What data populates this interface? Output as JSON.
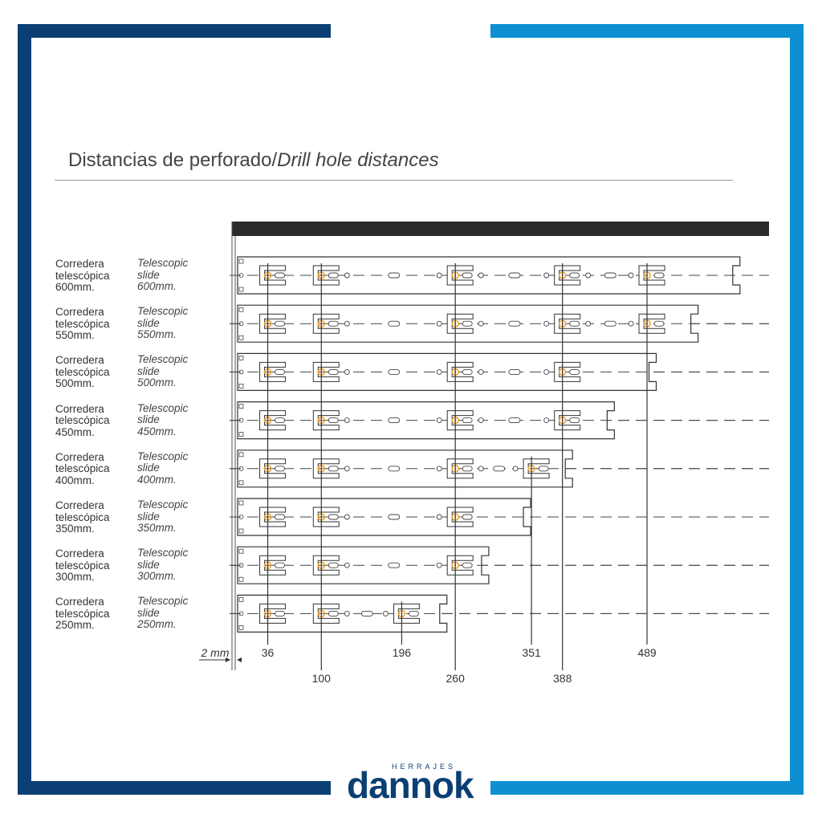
{
  "title": {
    "es": "Distancias de perforado",
    "sep": "/",
    "en": "Drill hole distances"
  },
  "rows": [
    {
      "es_line1": "Corredera",
      "es_line2": "telescópica",
      "size": "600mm.",
      "en_line1": "Telescopic",
      "en_line2": "slide",
      "size_en": "600mm.",
      "length_mm": 600,
      "brackets": [
        36,
        100,
        260,
        388,
        489
      ]
    },
    {
      "es_line1": "Corredera",
      "es_line2": "telescópica",
      "size": "550mm.",
      "en_line1": "Telescopic",
      "en_line2": "slide",
      "size_en": "550mm.",
      "length_mm": 550,
      "brackets": [
        36,
        100,
        260,
        388,
        489
      ]
    },
    {
      "es_line1": "Corredera",
      "es_line2": "telescópica",
      "size": "500mm.",
      "en_line1": "Telescopic",
      "en_line2": "slide",
      "size_en": "500mm.",
      "length_mm": 500,
      "brackets": [
        36,
        100,
        260,
        388
      ]
    },
    {
      "es_line1": "Corredera",
      "es_line2": "telescópica",
      "size": "450mm.",
      "en_line1": "Telescopic",
      "en_line2": "slide",
      "size_en": "450mm.",
      "length_mm": 450,
      "brackets": [
        36,
        100,
        260,
        388
      ]
    },
    {
      "es_line1": "Corredera",
      "es_line2": "telescópica",
      "size": "400mm.",
      "en_line1": "Telescopic",
      "en_line2": "slide",
      "size_en": "400mm.",
      "length_mm": 400,
      "brackets": [
        36,
        100,
        260,
        351
      ]
    },
    {
      "es_line1": "Corredera",
      "es_line2": "telescópica",
      "size": "350mm.",
      "en_line1": "Telescopic",
      "en_line2": "slide",
      "size_en": "350mm.",
      "length_mm": 350,
      "brackets": [
        36,
        100,
        260
      ]
    },
    {
      "es_line1": "Corredera",
      "es_line2": "telescópica",
      "size": "300mm.",
      "en_line1": "Telescopic",
      "en_line2": "slide",
      "size_en": "300mm.",
      "length_mm": 300,
      "brackets": [
        36,
        100,
        260
      ]
    },
    {
      "es_line1": "Corredera",
      "es_line2": "telescópica",
      "size": "250mm.",
      "en_line1": "Telescopic",
      "en_line2": "slide",
      "size_en": "250mm.",
      "length_mm": 250,
      "brackets": [
        36,
        100,
        196
      ]
    }
  ],
  "offset_label": "2 mm",
  "dimensions_top": [
    "36",
    "196",
    "351",
    "489"
  ],
  "dimensions_bottom": [
    "100",
    "260",
    "388"
  ],
  "logo": {
    "small": "HERRAJES",
    "main": "dannok"
  },
  "colors": {
    "frame_dark": "#0b3f73",
    "frame_light": "#0d8fd2",
    "hole": "#e8a33a",
    "board": "#2a2a2a"
  }
}
